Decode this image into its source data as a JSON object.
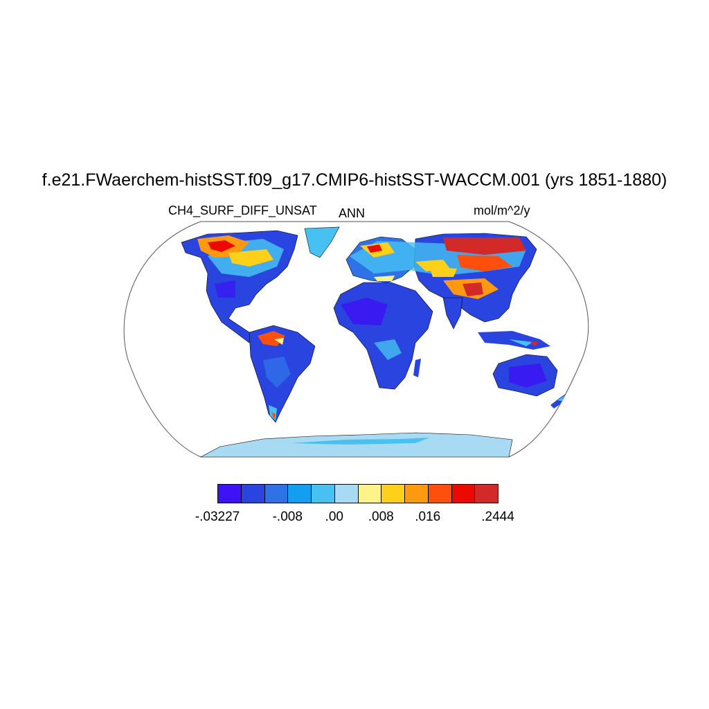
{
  "title": "f.e21.FWaerchem-histSST.f09_g17.CMIP6-histSST-WACCM.001 (yrs 1851-1880)",
  "left_label": "CH4_SURF_DIFF_UNSAT",
  "center_label": "ANN",
  "right_label": "mol/m^2/y",
  "colorbar": {
    "colors": [
      "#3d12f5",
      "#2a44e0",
      "#2f72e8",
      "#129ff2",
      "#46c1f2",
      "#a8daf3",
      "#fdf489",
      "#ffd01a",
      "#ff9910",
      "#ff4f0c",
      "#ec0a00",
      "#d32929"
    ],
    "labels": [
      {
        "text": "-.03227",
        "edge": 0
      },
      {
        "text": "-.008",
        "edge": 3
      },
      {
        "text": ".00",
        "edge": 5
      },
      {
        "text": ".008",
        "edge": 7
      },
      {
        "text": ".016",
        "edge": 9
      },
      {
        "text": ".2444",
        "edge": 12
      }
    ]
  },
  "map": {
    "projection": "Robinson",
    "land_base_color": "#2a44e0",
    "ocean_color": "#ffffff"
  }
}
